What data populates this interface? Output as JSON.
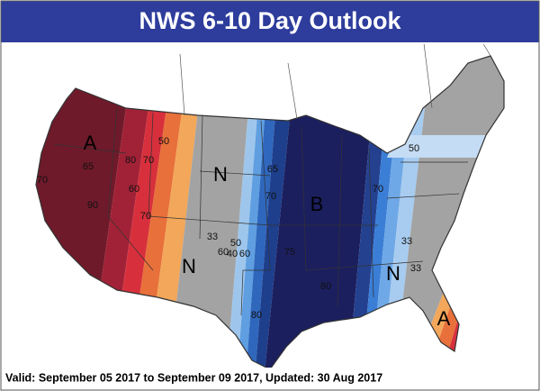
{
  "header": {
    "title": "NWS 6-10 Day Outlook"
  },
  "map": {
    "region_labels": [
      "A",
      "N",
      "N",
      "B",
      "N",
      "A"
    ],
    "contour_labels": [
      "50",
      "80",
      "70",
      "70",
      "90",
      "70",
      "60",
      "33",
      "50",
      "60",
      "40",
      "60",
      "65",
      "70",
      "50",
      "75",
      "80",
      "33",
      "33",
      "80",
      "70",
      "65"
    ]
  },
  "footer": {
    "text": "Valid: September 05 2017 to September 09 2017, Updated: 30 Aug 2017"
  }
}
